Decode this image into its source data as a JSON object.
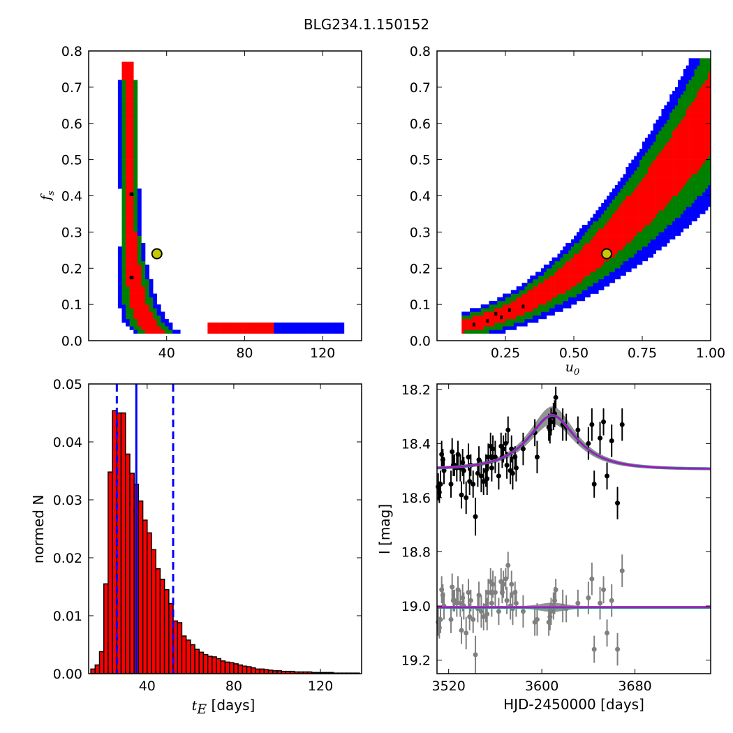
{
  "figure": {
    "title": "BLG234.1.150152"
  },
  "chart_data": [
    {
      "type": "heatmap",
      "xlabel": "",
      "ylabel": "f_s",
      "xlim": [
        0,
        140
      ],
      "ylim": [
        0,
        0.8
      ],
      "xticks": [
        "40",
        "80",
        "120"
      ],
      "yticks": [
        "0.0",
        "0.1",
        "0.2",
        "0.3",
        "0.4",
        "0.5",
        "0.6",
        "0.7",
        "0.8"
      ],
      "levels": [
        "black",
        "red",
        "green",
        "blue"
      ],
      "best_fit": {
        "x": 35,
        "y": 0.24
      }
    },
    {
      "type": "heatmap",
      "xlabel": "u_0",
      "ylabel": "",
      "xlim": [
        0,
        1.0
      ],
      "ylim": [
        0,
        0.8
      ],
      "xticks": [
        "0.25",
        "0.50",
        "0.75",
        "1.00"
      ],
      "yticks": [
        "0.0",
        "0.1",
        "0.2",
        "0.3",
        "0.4",
        "0.5",
        "0.6",
        "0.7",
        "0.8"
      ],
      "levels": [
        "black",
        "red",
        "green",
        "blue"
      ],
      "best_fit": {
        "x": 0.62,
        "y": 0.24
      }
    },
    {
      "type": "bar",
      "xlabel": "t_E [days]",
      "ylabel": "normed N",
      "xlim": [
        13,
        139
      ],
      "ylim": [
        0,
        0.05
      ],
      "xticks": [
        "40",
        "80",
        "120"
      ],
      "yticks": [
        "0.00",
        "0.01",
        "0.02",
        "0.03",
        "0.04",
        "0.05"
      ],
      "bin_width": 2,
      "bin_starts": [
        14,
        16,
        18,
        20,
        22,
        24,
        26,
        28,
        30,
        32,
        34,
        36,
        38,
        40,
        42,
        44,
        46,
        48,
        50,
        52,
        54,
        56,
        58,
        60,
        62,
        64,
        66,
        68,
        70,
        72,
        74,
        76,
        78,
        80,
        82,
        84,
        86,
        88,
        90,
        92,
        94,
        96,
        98,
        100,
        102,
        104,
        106,
        108,
        110,
        112,
        114,
        116,
        118,
        120,
        122,
        124,
        126,
        128,
        130,
        132,
        134,
        136
      ],
      "values": [
        0.0008,
        0.0015,
        0.0038,
        0.0155,
        0.0348,
        0.0454,
        0.045,
        0.045,
        0.0379,
        0.0346,
        0.0327,
        0.0298,
        0.0265,
        0.0243,
        0.0214,
        0.0181,
        0.0163,
        0.0145,
        0.0121,
        0.0091,
        0.0088,
        0.0065,
        0.0058,
        0.005,
        0.0042,
        0.0037,
        0.0033,
        0.003,
        0.0029,
        0.0026,
        0.0022,
        0.002,
        0.0019,
        0.0017,
        0.0015,
        0.0013,
        0.0012,
        0.001,
        0.0008,
        0.0008,
        0.0007,
        0.0006,
        0.0005,
        0.0005,
        0.0004,
        0.0004,
        0.0004,
        0.0003,
        0.0003,
        0.0003,
        0.0003,
        0.0002,
        0.0002,
        0.0002,
        0.0002,
        0.0002,
        0.0001,
        0.0001,
        0.0001,
        0.0001,
        0.0001,
        0.0001
      ],
      "median": 35,
      "interval": [
        26,
        52
      ]
    },
    {
      "type": "scatter",
      "xlabel": "HJD-2450000 [days]",
      "ylabel": "I [mag]",
      "xlim": [
        3510,
        3745
      ],
      "ylim": [
        19.25,
        18.18
      ],
      "xticks": [
        "3520",
        "3600",
        "3680"
      ],
      "yticks": [
        "18.2",
        "18.4",
        "18.6",
        "18.8",
        "19.0",
        "19.2"
      ],
      "model": {
        "t0": 3609,
        "tE": 35,
        "u0": 0.62,
        "fs": 0.24,
        "baseline": 18.495
      },
      "series": [
        {
          "color": "#000000",
          "points": [
            [
              3511,
              18.56,
              0.05
            ],
            [
              3512,
              18.58,
              0.04
            ],
            [
              3513,
              18.55,
              0.05
            ],
            [
              3514,
              18.44,
              0.05
            ],
            [
              3515,
              18.46,
              0.04
            ],
            [
              3516,
              18.5,
              0.05
            ],
            [
              3522,
              18.55,
              0.05
            ],
            [
              3523,
              18.43,
              0.05
            ],
            [
              3524,
              18.48,
              0.04
            ],
            [
              3525,
              18.48,
              0.04
            ],
            [
              3527,
              18.49,
              0.05
            ],
            [
              3528,
              18.44,
              0.05
            ],
            [
              3530,
              18.49,
              0.05
            ],
            [
              3531,
              18.59,
              0.05
            ],
            [
              3532,
              18.47,
              0.05
            ],
            [
              3533,
              18.5,
              0.05
            ],
            [
              3535,
              18.6,
              0.06
            ],
            [
              3537,
              18.45,
              0.05
            ],
            [
              3538,
              18.54,
              0.05
            ],
            [
              3539,
              18.48,
              0.04
            ],
            [
              3541,
              18.55,
              0.05
            ],
            [
              3543,
              18.67,
              0.07
            ],
            [
              3545,
              18.51,
              0.05
            ],
            [
              3546,
              18.46,
              0.05
            ],
            [
              3548,
              18.52,
              0.06
            ],
            [
              3550,
              18.54,
              0.05
            ],
            [
              3552,
              18.5,
              0.06
            ],
            [
              3553,
              18.53,
              0.06
            ],
            [
              3554,
              18.45,
              0.05
            ],
            [
              3556,
              18.41,
              0.05
            ],
            [
              3557,
              18.49,
              0.05
            ],
            [
              3558,
              18.42,
              0.05
            ],
            [
              3560,
              18.45,
              0.06
            ],
            [
              3563,
              18.52,
              0.05
            ],
            [
              3565,
              18.41,
              0.05
            ],
            [
              3566,
              18.45,
              0.04
            ],
            [
              3567,
              18.42,
              0.05
            ],
            [
              3569,
              18.4,
              0.04
            ],
            [
              3570,
              18.48,
              0.05
            ],
            [
              3571,
              18.35,
              0.05
            ],
            [
              3573,
              18.5,
              0.05
            ],
            [
              3574,
              18.42,
              0.05
            ],
            [
              3575,
              18.51,
              0.06
            ],
            [
              3577,
              18.45,
              0.04
            ],
            [
              3578,
              18.49,
              0.05
            ],
            [
              3584,
              18.42,
              0.06
            ],
            [
              3594,
              18.36,
              0.05
            ],
            [
              3596,
              18.45,
              0.06
            ],
            [
              3606,
              18.34,
              0.05
            ],
            [
              3607,
              18.35,
              0.05
            ],
            [
              3608,
              18.32,
              0.05
            ],
            [
              3610,
              18.3,
              0.05
            ],
            [
              3611,
              18.29,
              0.05
            ],
            [
              3612,
              18.23,
              0.04
            ],
            [
              3618,
              18.33,
              0.06
            ],
            [
              3621,
              18.34,
              0.05
            ],
            [
              3631,
              18.35,
              0.05
            ],
            [
              3640,
              18.4,
              0.06
            ],
            [
              3643,
              18.33,
              0.06
            ],
            [
              3645,
              18.55,
              0.05
            ],
            [
              3650,
              18.38,
              0.06
            ],
            [
              3653,
              18.32,
              0.05
            ],
            [
              3656,
              18.52,
              0.05
            ],
            [
              3660,
              18.39,
              0.06
            ],
            [
              3665,
              18.62,
              0.06
            ],
            [
              3669,
              18.33,
              0.06
            ]
          ]
        },
        {
          "color": "#808080",
          "points": [
            [
              3511,
              19.06,
              0.05
            ],
            [
              3512,
              19.08,
              0.04
            ],
            [
              3513,
              19.05,
              0.05
            ],
            [
              3514,
              18.94,
              0.05
            ],
            [
              3515,
              18.96,
              0.04
            ],
            [
              3516,
              19.0,
              0.05
            ],
            [
              3522,
              19.05,
              0.05
            ],
            [
              3523,
              18.93,
              0.05
            ],
            [
              3524,
              18.98,
              0.04
            ],
            [
              3525,
              18.98,
              0.04
            ],
            [
              3527,
              18.99,
              0.05
            ],
            [
              3528,
              18.94,
              0.05
            ],
            [
              3530,
              18.99,
              0.05
            ],
            [
              3531,
              19.09,
              0.05
            ],
            [
              3532,
              18.97,
              0.05
            ],
            [
              3533,
              19.0,
              0.05
            ],
            [
              3535,
              19.1,
              0.06
            ],
            [
              3537,
              18.95,
              0.05
            ],
            [
              3538,
              19.04,
              0.05
            ],
            [
              3539,
              18.98,
              0.04
            ],
            [
              3541,
              19.05,
              0.05
            ],
            [
              3543,
              19.18,
              0.07
            ],
            [
              3545,
              19.01,
              0.05
            ],
            [
              3546,
              18.96,
              0.05
            ],
            [
              3548,
              19.02,
              0.06
            ],
            [
              3550,
              19.04,
              0.05
            ],
            [
              3552,
              19.0,
              0.06
            ],
            [
              3553,
              19.03,
              0.06
            ],
            [
              3554,
              18.95,
              0.05
            ],
            [
              3556,
              18.91,
              0.05
            ],
            [
              3557,
              18.99,
              0.05
            ],
            [
              3558,
              18.92,
              0.05
            ],
            [
              3560,
              18.95,
              0.06
            ],
            [
              3563,
              19.02,
              0.05
            ],
            [
              3565,
              18.91,
              0.05
            ],
            [
              3566,
              18.95,
              0.04
            ],
            [
              3567,
              18.92,
              0.05
            ],
            [
              3569,
              18.9,
              0.04
            ],
            [
              3570,
              18.98,
              0.05
            ],
            [
              3571,
              18.85,
              0.05
            ],
            [
              3573,
              19.0,
              0.05
            ],
            [
              3574,
              18.92,
              0.05
            ],
            [
              3575,
              19.01,
              0.06
            ],
            [
              3577,
              18.95,
              0.04
            ],
            [
              3578,
              18.99,
              0.05
            ],
            [
              3584,
              19.02,
              0.06
            ],
            [
              3594,
              19.06,
              0.05
            ],
            [
              3596,
              19.05,
              0.06
            ],
            [
              3606,
              19.06,
              0.05
            ],
            [
              3607,
              19.04,
              0.05
            ],
            [
              3608,
              19.02,
              0.05
            ],
            [
              3610,
              19.0,
              0.05
            ],
            [
              3611,
              18.98,
              0.05
            ],
            [
              3612,
              18.94,
              0.04
            ],
            [
              3618,
              19.0,
              0.06
            ],
            [
              3621,
              19.01,
              0.05
            ],
            [
              3631,
              18.99,
              0.05
            ],
            [
              3640,
              18.97,
              0.06
            ],
            [
              3643,
              18.9,
              0.06
            ],
            [
              3645,
              19.16,
              0.05
            ],
            [
              3650,
              18.99,
              0.06
            ],
            [
              3653,
              18.94,
              0.05
            ],
            [
              3656,
              19.1,
              0.05
            ],
            [
              3660,
              18.98,
              0.06
            ],
            [
              3665,
              19.16,
              0.06
            ],
            [
              3669,
              18.87,
              0.06
            ]
          ]
        }
      ]
    }
  ]
}
